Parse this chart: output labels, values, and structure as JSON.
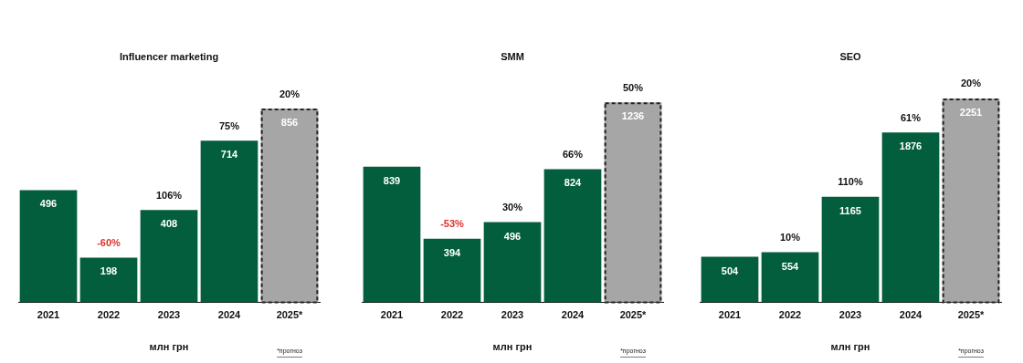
{
  "chart_data": [
    {
      "type": "bar",
      "title": "Influencer marketing",
      "xlabel": "млн грн",
      "categories": [
        "2021",
        "2022",
        "2023",
        "2024",
        "2025*"
      ],
      "stacked": true,
      "data_labels": true,
      "grid": false,
      "legend": false,
      "tick_labels": "x",
      "series": [
        {
          "color": "#035e3e",
          "values": [
            496,
            198,
            408,
            714,
            null
          ]
        },
        {
          "color": "#a6a6a6",
          "line_style": "dashed",
          "values": [
            null,
            null,
            null,
            null,
            856
          ]
        }
      ],
      "annotations": [
        {
          "text": "-60%",
          "x": "2022",
          "y": 198
        },
        {
          "text": "106%",
          "x": "2023",
          "y": 408
        },
        {
          "text": "75%",
          "x": "2024",
          "y": 714
        },
        {
          "text": "20%",
          "x": "2025*",
          "y": 856
        },
        "*прогноз"
      ]
    },
    {
      "type": "bar",
      "title": "SMM",
      "xlabel": "млн грн",
      "categories": [
        "2021",
        "2022",
        "2023",
        "2024",
        "2025*"
      ],
      "stacked": true,
      "data_labels": true,
      "grid": false,
      "legend": false,
      "tick_labels": "x",
      "series": [
        {
          "color": "#035e3e",
          "values": [
            839,
            394,
            496,
            824,
            null
          ]
        },
        {
          "color": "#a6a6a6",
          "line_style": "dashed",
          "values": [
            null,
            null,
            null,
            null,
            1236
          ]
        }
      ],
      "annotations": [
        {
          "text": "-53%",
          "x": "2022",
          "y": 394
        },
        {
          "text": "30%",
          "x": "2023",
          "y": 496
        },
        {
          "text": "66%",
          "x": "2024",
          "y": 824
        },
        {
          "text": "50%",
          "x": "2025*",
          "y": 1236
        },
        "*прогноз"
      ]
    },
    {
      "type": "bar",
      "title": "SEO",
      "xlabel": "млн грн",
      "categories": [
        "2021",
        "2022",
        "2023",
        "2024",
        "2025*"
      ],
      "stacked": true,
      "data_labels": true,
      "grid": false,
      "legend": false,
      "tick_labels": "x",
      "series": [
        {
          "color": "#035e3e",
          "values": [
            504,
            554,
            1165,
            1876,
            null
          ]
        },
        {
          "color": "#a6a6a6",
          "line_style": "dashed",
          "values": [
            null,
            null,
            null,
            null,
            2251
          ]
        }
      ],
      "annotations": [
        {
          "text": "10%",
          "x": "2022",
          "y": 554
        },
        {
          "text": "110%",
          "x": "2023",
          "y": 1165
        },
        {
          "text": "61%",
          "x": "2024",
          "y": 1876
        },
        {
          "text": "20%",
          "x": "2025*",
          "y": 2251
        },
        "*прогноз"
      ]
    }
  ]
}
